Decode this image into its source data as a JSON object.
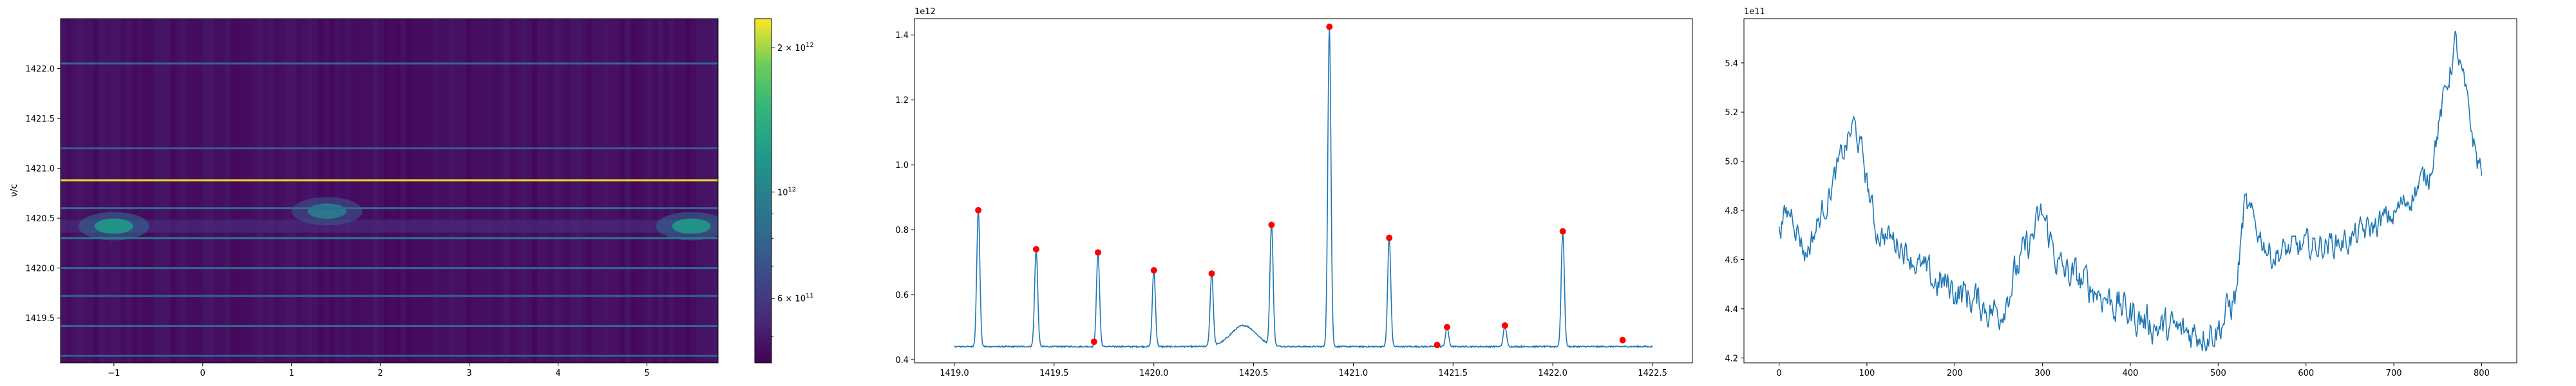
{
  "figure": {
    "panels": 3
  },
  "chart_data": [
    {
      "type": "heatmap",
      "colormap": "viridis",
      "ylabel": "ν/c",
      "xlim": [
        -1.6,
        5.8
      ],
      "ylim": [
        1419.05,
        1422.5
      ],
      "xticks": [
        -1,
        0,
        1,
        2,
        3,
        4,
        5
      ],
      "xtick_labels": [
        "−1",
        "0",
        "1",
        "2",
        "3",
        "4",
        "5"
      ],
      "yticks": [
        1419.5,
        1420.0,
        1420.5,
        1421.0,
        1421.5,
        1422.0
      ],
      "ytick_labels": [
        "1419.5",
        "1420.0",
        "1420.5",
        "1421.0",
        "1421.5",
        "1422.0"
      ],
      "horizontal_lines": [
        {
          "y": 1422.05,
          "level": 0.35
        },
        {
          "y": 1421.2,
          "level": 0.3
        },
        {
          "y": 1420.88,
          "level": 0.98
        },
        {
          "y": 1420.6,
          "level": 0.35
        },
        {
          "y": 1420.3,
          "level": 0.42
        },
        {
          "y": 1420.0,
          "level": 0.35
        },
        {
          "y": 1419.72,
          "level": 0.33
        },
        {
          "y": 1419.42,
          "level": 0.35
        },
        {
          "y": 1419.12,
          "level": 0.3
        }
      ],
      "blobs": [
        {
          "x": -1.0,
          "y": 1420.42,
          "level": 0.55
        },
        {
          "x": 1.4,
          "y": 1420.57,
          "level": 0.45
        },
        {
          "x": 5.5,
          "y": 1420.42,
          "level": 0.55
        }
      ],
      "colorbar": {
        "scale": "log",
        "range": [
          440000000000.0,
          2300000000000.0
        ],
        "ticks": [
          {
            "value": 600000000000.0,
            "label_base": "6 × 10",
            "label_exp": "11"
          },
          {
            "value": 1000000000000.0,
            "label_base": "10",
            "label_exp": "12"
          },
          {
            "value": 2000000000000.0,
            "label_base": "2 × 10",
            "label_exp": "12"
          }
        ]
      }
    },
    {
      "type": "line",
      "offset_label": "1e12",
      "xlim": [
        1418.8,
        1422.7
      ],
      "ylim": [
        0.39,
        1.45
      ],
      "xticks": [
        1419.0,
        1419.5,
        1420.0,
        1420.5,
        1421.0,
        1421.5,
        1422.0,
        1422.5
      ],
      "xtick_labels": [
        "1419.0",
        "1419.5",
        "1420.0",
        "1420.5",
        "1421.0",
        "1421.5",
        "1422.0",
        "1422.5"
      ],
      "yticks": [
        0.4,
        0.6,
        0.8,
        1.0,
        1.2,
        1.4
      ],
      "ytick_labels": [
        "0.4",
        "0.6",
        "0.8",
        "1.0",
        "1.2",
        "1.4"
      ],
      "baseline": 0.44,
      "line_color": "#1f77b4",
      "marker_color": "#ff0000",
      "peaks": [
        {
          "x": 1419.12,
          "y": 0.86
        },
        {
          "x": 1419.41,
          "y": 0.74
        },
        {
          "x": 1419.72,
          "y": 0.73
        },
        {
          "x": 1420.0,
          "y": 0.675
        },
        {
          "x": 1420.29,
          "y": 0.665
        },
        {
          "x": 1420.59,
          "y": 0.815
        },
        {
          "x": 1420.88,
          "y": 1.425
        },
        {
          "x": 1421.18,
          "y": 0.775
        },
        {
          "x": 1421.47,
          "y": 0.5
        },
        {
          "x": 1421.76,
          "y": 0.505
        },
        {
          "x": 1422.05,
          "y": 0.795
        }
      ],
      "bump": {
        "x": 1420.45,
        "y": 0.505
      },
      "extra_markers": [
        {
          "x": 1419.7,
          "y": 0.455
        },
        {
          "x": 1421.42,
          "y": 0.445
        },
        {
          "x": 1422.35,
          "y": 0.46
        }
      ]
    },
    {
      "type": "line",
      "offset_label": "1e11",
      "xlim": [
        -40,
        840
      ],
      "ylim": [
        4.18,
        5.58
      ],
      "xticks": [
        0,
        100,
        200,
        300,
        400,
        500,
        600,
        700,
        800
      ],
      "xtick_labels": [
        "0",
        "100",
        "200",
        "300",
        "400",
        "500",
        "600",
        "700",
        "800"
      ],
      "yticks": [
        4.2,
        4.4,
        4.6,
        4.8,
        5.0,
        5.2,
        5.4
      ],
      "ytick_labels": [
        "4.2",
        "4.4",
        "4.6",
        "4.8",
        "5.0",
        "5.2",
        "5.4"
      ],
      "line_color": "#1f77b4",
      "trend": [
        [
          0,
          4.75
        ],
        [
          15,
          4.8
        ],
        [
          30,
          4.62
        ],
        [
          50,
          4.8
        ],
        [
          70,
          5.0
        ],
        [
          85,
          5.15
        ],
        [
          95,
          5.02
        ],
        [
          110,
          4.72
        ],
        [
          140,
          4.66
        ],
        [
          170,
          4.52
        ],
        [
          200,
          4.48
        ],
        [
          230,
          4.42
        ],
        [
          250,
          4.38
        ],
        [
          270,
          4.55
        ],
        [
          300,
          4.78
        ],
        [
          320,
          4.56
        ],
        [
          360,
          4.48
        ],
        [
          400,
          4.38
        ],
        [
          430,
          4.33
        ],
        [
          460,
          4.3
        ],
        [
          500,
          4.32
        ],
        [
          520,
          4.45
        ],
        [
          530,
          4.82
        ],
        [
          560,
          4.62
        ],
        [
          600,
          4.65
        ],
        [
          650,
          4.68
        ],
        [
          700,
          4.78
        ],
        [
          740,
          4.95
        ],
        [
          760,
          5.3
        ],
        [
          770,
          5.48
        ],
        [
          780,
          5.3
        ],
        [
          795,
          5.0
        ],
        [
          800,
          4.98
        ]
      ],
      "n_points": 800
    }
  ]
}
